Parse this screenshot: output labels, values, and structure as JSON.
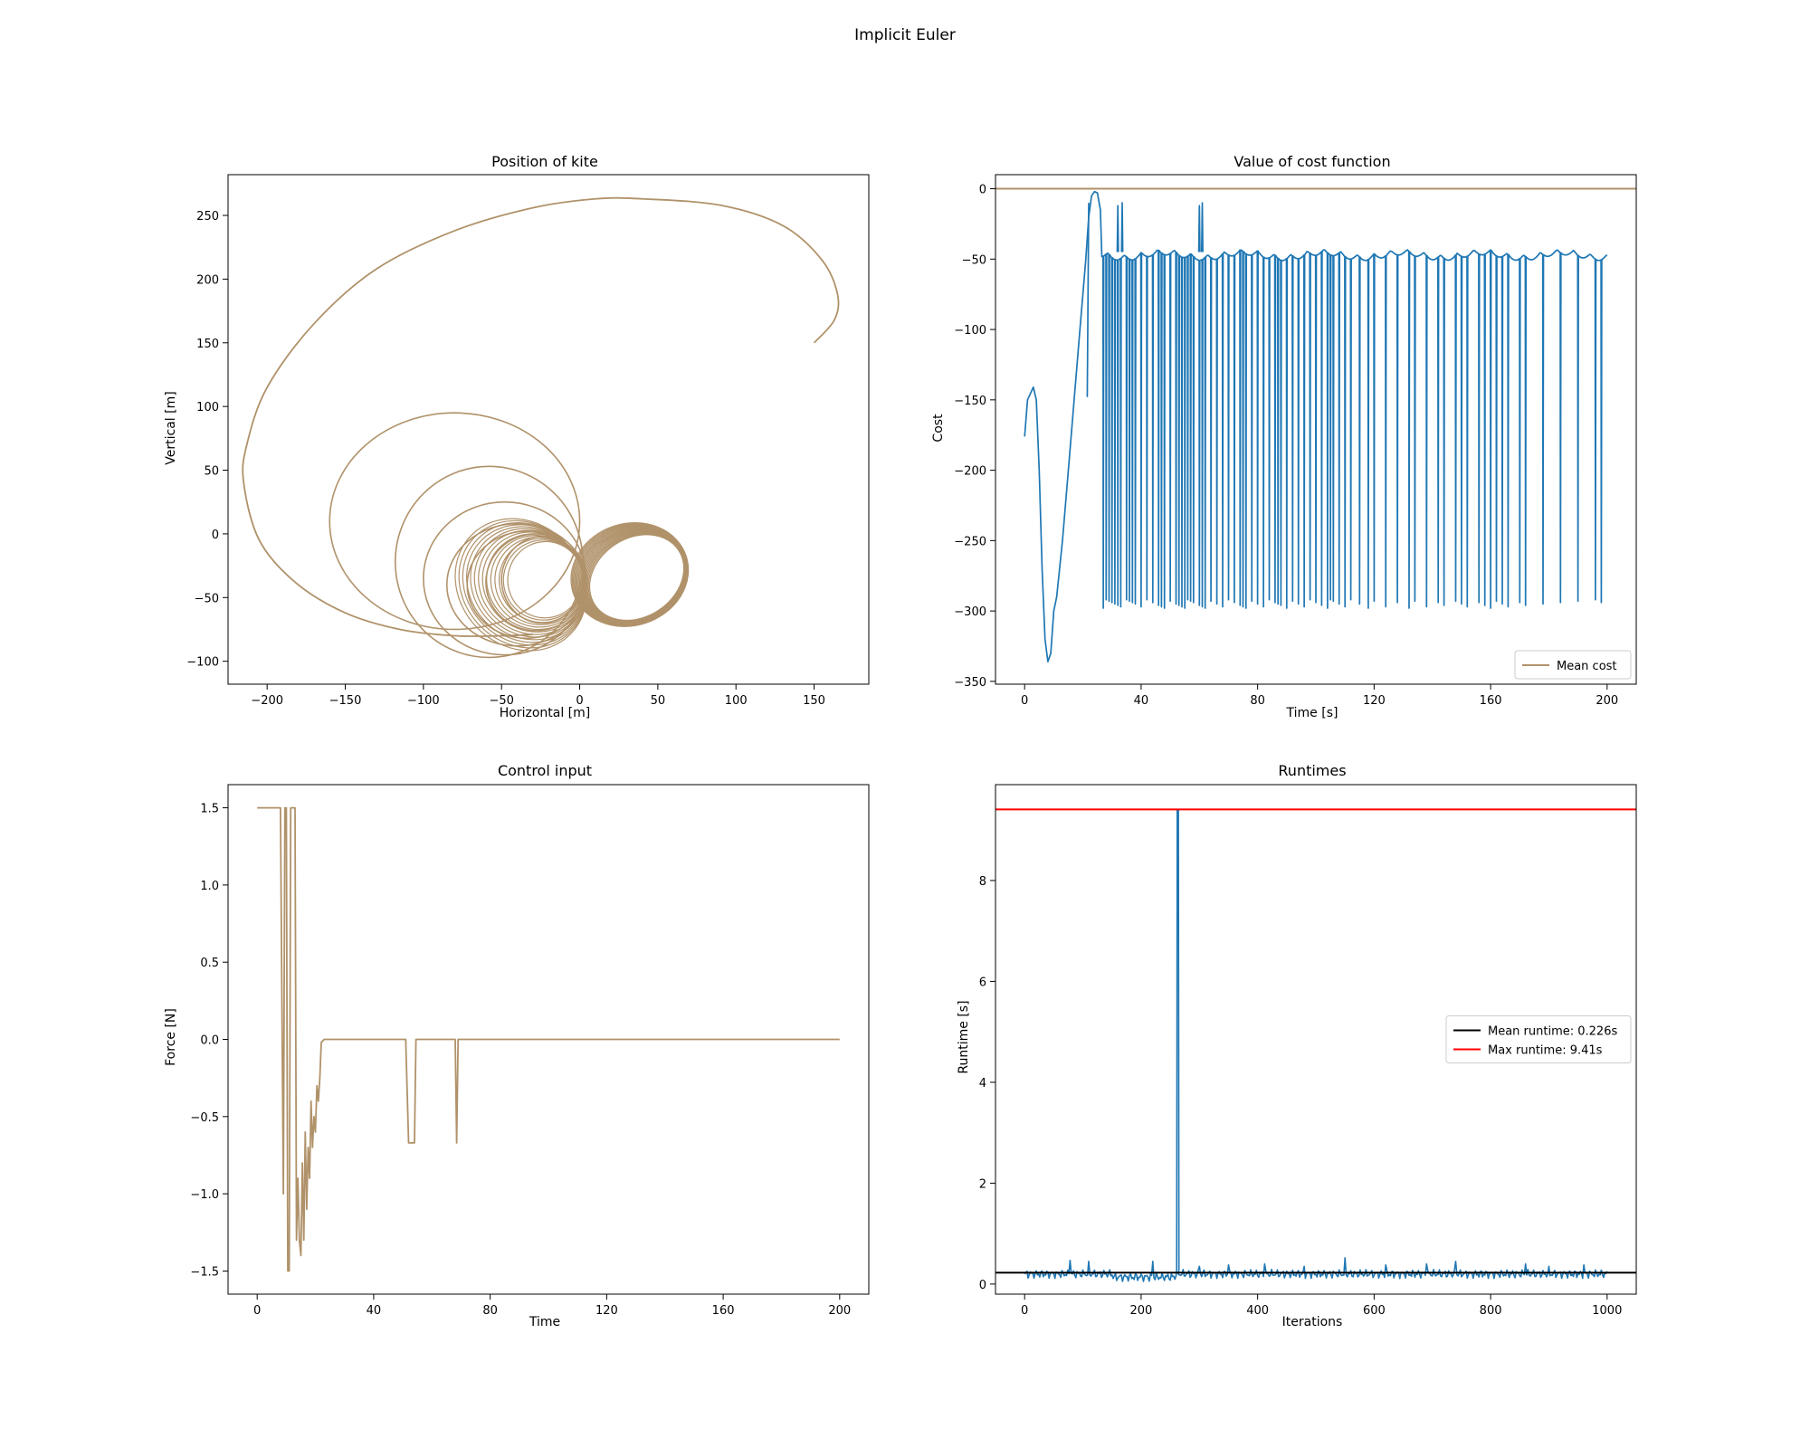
{
  "figure_title": "Implicit Euler",
  "colors": {
    "tan": "#b0926a",
    "blue": "#1f77b4",
    "black": "#000000",
    "red": "#ff0000"
  },
  "chart_data": [
    {
      "id": "position",
      "type": "line",
      "title": "Position of kite",
      "xlabel": "Horizontal [m]",
      "ylabel": "Vertical [m]",
      "xlim": [
        -225,
        185
      ],
      "ylim": [
        -118,
        282
      ],
      "xticks": [
        -200,
        -150,
        -100,
        -50,
        0,
        50,
        100,
        150
      ],
      "yticks": [
        -100,
        -50,
        0,
        50,
        100,
        150,
        200,
        250
      ],
      "grid": false,
      "series": [
        {
          "color": "#b0926a",
          "description": "Kite trajectory: large outer spiral from (150,150) sweeping up to (10,263), left to (-215,50), down to (-30,-80), then inner loops shrinking around the origin and many overlapping figure-eight loops between x=-50 and x=70",
          "outer_spiral": [
            [
              150,
              150
            ],
            [
              163,
              168
            ],
            [
              165,
              188
            ],
            [
              155,
              215
            ],
            [
              130,
              242
            ],
            [
              90,
              258
            ],
            [
              40,
              263
            ],
            [
              10,
              263
            ],
            [
              -30,
              256
            ],
            [
              -80,
              238
            ],
            [
              -130,
              208
            ],
            [
              -170,
              165
            ],
            [
              -200,
              115
            ],
            [
              -213,
              70
            ],
            [
              -215,
              40
            ],
            [
              -205,
              -5
            ],
            [
              -182,
              -38
            ],
            [
              -150,
              -62
            ],
            [
              -115,
              -75
            ],
            [
              -80,
              -80
            ],
            [
              -50,
              -80
            ],
            [
              -30,
              -79
            ]
          ]
        }
      ]
    },
    {
      "id": "cost",
      "type": "line",
      "title": "Value of cost function",
      "xlabel": "Time [s]",
      "ylabel": "Cost",
      "xlim": [
        -10,
        210
      ],
      "ylim": [
        -352,
        10
      ],
      "xticks": [
        0,
        40,
        80,
        120,
        160,
        200
      ],
      "yticks": [
        0,
        -50,
        -100,
        -150,
        -200,
        -250,
        -300,
        -350
      ],
      "grid": false,
      "legend": {
        "position": "lower-right",
        "entries": [
          "Mean cost"
        ]
      },
      "series": [
        {
          "name": "Mean cost",
          "color": "#b0926a",
          "constant": 0
        },
        {
          "color": "#1f77b4",
          "description": "Cost starts near -176, rises to -141 at t=3, dips to -336 at t=8, rises to ~-2 at t=24, then oscillates around -45 to -50 with frequent drops to about -290 to -300",
          "initial": [
            [
              0,
              -176
            ],
            [
              1,
              -150
            ],
            [
              3,
              -141
            ],
            [
              4,
              -150
            ],
            [
              5,
              -200
            ],
            [
              6,
              -270
            ],
            [
              7,
              -320
            ],
            [
              8,
              -336
            ],
            [
              9,
              -330
            ],
            [
              10,
              -300
            ],
            [
              11,
              -290
            ],
            [
              13,
              -250
            ],
            [
              15,
              -200
            ],
            [
              17,
              -150
            ],
            [
              19,
              -100
            ],
            [
              21,
              -50
            ],
            [
              22,
              -20
            ],
            [
              23,
              -5
            ],
            [
              24,
              -2
            ],
            [
              25,
              -3
            ],
            [
              26,
              -15
            ]
          ],
          "baseline": -45,
          "dip_value": -292,
          "dip_times": [
            22,
            26,
            27,
            28,
            29,
            30,
            31,
            32,
            33,
            35,
            36,
            37,
            38,
            40,
            42,
            44,
            46,
            47,
            48,
            50,
            52,
            53,
            54,
            55,
            56,
            57,
            58,
            60,
            61,
            62,
            64,
            66,
            68,
            70,
            72,
            74,
            75,
            76,
            78,
            80,
            82,
            84,
            86,
            87,
            88,
            90,
            92,
            94,
            96,
            98,
            100,
            102,
            104,
            105,
            106,
            108,
            110,
            112,
            115,
            118,
            120,
            124,
            128,
            132,
            134,
            138,
            142,
            144,
            148,
            150,
            152,
            156,
            158,
            160,
            162,
            164,
            166,
            170,
            172,
            178,
            184,
            190,
            196,
            198
          ],
          "end": [
            [
              200,
              -47
            ]
          ]
        }
      ]
    },
    {
      "id": "control",
      "type": "line",
      "title": "Control input",
      "xlabel": "Time",
      "ylabel": "Force [N]",
      "xlim": [
        -10,
        210
      ],
      "ylim": [
        -1.65,
        1.65
      ],
      "xticks": [
        0,
        40,
        80,
        120,
        160,
        200
      ],
      "yticks": [
        -1.5,
        -1.0,
        -0.5,
        0.0,
        0.5,
        1.0,
        1.5
      ],
      "grid": false,
      "series": [
        {
          "color": "#b0926a",
          "points": [
            [
              0,
              1.5
            ],
            [
              7,
              1.5
            ],
            [
              8,
              1.5
            ],
            [
              9,
              -1.0
            ],
            [
              9.5,
              1.5
            ],
            [
              10,
              1.5
            ],
            [
              10.5,
              -1.5
            ],
            [
              11,
              -1.5
            ],
            [
              11.5,
              1.5
            ],
            [
              13,
              1.5
            ],
            [
              13.5,
              -1.3
            ],
            [
              14,
              -0.9
            ],
            [
              14.5,
              -1.3
            ],
            [
              15,
              -1.4
            ],
            [
              15.5,
              -0.8
            ],
            [
              16,
              -1.3
            ],
            [
              16.5,
              -0.6
            ],
            [
              17,
              -1.1
            ],
            [
              17.5,
              -0.7
            ],
            [
              18,
              -0.9
            ],
            [
              18.5,
              -0.4
            ],
            [
              19,
              -0.7
            ],
            [
              19.5,
              -0.5
            ],
            [
              20,
              -0.6
            ],
            [
              20.5,
              -0.3
            ],
            [
              21,
              -0.4
            ],
            [
              21.5,
              -0.25
            ],
            [
              22,
              -0.02
            ],
            [
              23,
              0.0
            ],
            [
              51,
              0.0
            ],
            [
              52,
              -0.67
            ],
            [
              54,
              -0.67
            ],
            [
              54.5,
              0.0
            ],
            [
              68,
              0.0
            ],
            [
              68.5,
              -0.67
            ],
            [
              69,
              0.0
            ],
            [
              200,
              0.0
            ]
          ]
        }
      ]
    },
    {
      "id": "runtimes",
      "type": "line",
      "title": "Runtimes",
      "xlabel": "Iterations",
      "ylabel": "Runtime [s]",
      "xlim": [
        -50,
        1050
      ],
      "ylim": [
        -0.2,
        9.9
      ],
      "xticks": [
        0,
        200,
        400,
        600,
        800,
        1000
      ],
      "yticks": [
        0,
        2,
        4,
        6,
        8
      ],
      "grid": false,
      "legend": {
        "position": "center-right",
        "entries": [
          "Mean runtime: 0.226s",
          "Max runtime: 9.41s"
        ]
      },
      "series": [
        {
          "name": "Mean runtime: 0.226s",
          "color": "#000000",
          "constant": 0.226
        },
        {
          "name": "Max runtime: 9.41s",
          "color": "#ff0000",
          "constant": 9.41
        },
        {
          "color": "#1f77b4",
          "description": "Runtime per iteration fluctuating around 0.2s with a spike to 9.41 near iteration 263",
          "baseline": 0.2,
          "spike": [
            263,
            9.41
          ],
          "bumps": [
            [
              78,
              0.47
            ],
            [
              110,
              0.45
            ],
            [
              125,
              0.4
            ],
            [
              220,
              0.45
            ],
            [
              245,
              0.4
            ],
            [
              300,
              0.35
            ],
            [
              350,
              0.38
            ],
            [
              412,
              0.4
            ],
            [
              480,
              0.35
            ],
            [
              550,
              0.52
            ],
            [
              620,
              0.38
            ],
            [
              690,
              0.4
            ],
            [
              740,
              0.45
            ],
            [
              860,
              0.4
            ],
            [
              900,
              0.35
            ],
            [
              960,
              0.38
            ]
          ]
        }
      ]
    }
  ]
}
